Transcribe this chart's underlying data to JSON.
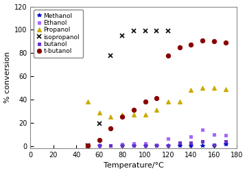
{
  "title": "",
  "xlabel": "Temperature/°C",
  "ylabel": "% conversion",
  "xlim": [
    0,
    180
  ],
  "ylim": [
    -2,
    120
  ],
  "yticks": [
    0,
    20,
    40,
    60,
    80,
    100,
    120
  ],
  "xticks": [
    0,
    20,
    40,
    60,
    80,
    100,
    120,
    140,
    160,
    180
  ],
  "series": {
    "Methanol": {
      "color": "#0000cc",
      "marker": "*",
      "markersize": 4,
      "x": [
        50,
        60,
        80,
        90,
        100,
        110,
        120,
        130,
        140,
        150,
        160,
        170
      ],
      "y": [
        0.5,
        0.5,
        0.5,
        0.5,
        0.5,
        0.5,
        0.5,
        0.5,
        0.5,
        0.5,
        0.5,
        1.5
      ]
    },
    "Ethanol": {
      "color": "#aa66ff",
      "marker": "s",
      "markersize": 3.5,
      "x": [
        60,
        70,
        80,
        90,
        100,
        110,
        120,
        130,
        140,
        150,
        160,
        170
      ],
      "y": [
        0.5,
        0.5,
        1.5,
        2,
        2,
        1,
        6,
        3,
        8,
        14,
        10,
        9
      ]
    },
    "Propanol": {
      "color": "#ccaa00",
      "marker": "^",
      "markersize": 5,
      "x": [
        50,
        60,
        70,
        80,
        90,
        100,
        110,
        120,
        130,
        140,
        150,
        160,
        170
      ],
      "y": [
        38,
        29,
        25,
        27,
        27,
        27,
        31,
        38,
        38,
        48,
        50,
        50,
        49
      ]
    },
    "isopropanol": {
      "color": "#111111",
      "marker": "x",
      "markersize": 5,
      "x": [
        50,
        60,
        70,
        80,
        90,
        100,
        110,
        120
      ],
      "y": [
        0.5,
        19,
        78,
        95,
        99,
        99,
        99,
        99
      ]
    },
    "butanol": {
      "color": "#6633cc",
      "marker": "s",
      "markersize": 3.5,
      "x": [
        60,
        70,
        80,
        90,
        100,
        110,
        120,
        130,
        140,
        150,
        160,
        170
      ],
      "y": [
        0.5,
        0.5,
        0.5,
        0.5,
        0.5,
        0.5,
        0.5,
        3,
        3,
        4,
        1,
        4
      ]
    },
    "t-butanol": {
      "color": "#880000",
      "marker": "o",
      "markersize": 4.5,
      "x": [
        50,
        60,
        70,
        80,
        90,
        100,
        110,
        120,
        130,
        140,
        150,
        160,
        170
      ],
      "y": [
        0.5,
        5,
        15,
        25,
        31,
        38,
        41,
        78,
        85,
        87,
        91,
        90,
        89
      ]
    }
  },
  "legend_fontsize": 6.5,
  "axis_fontsize": 8,
  "tick_fontsize": 7,
  "bg_color": "#ffffff"
}
